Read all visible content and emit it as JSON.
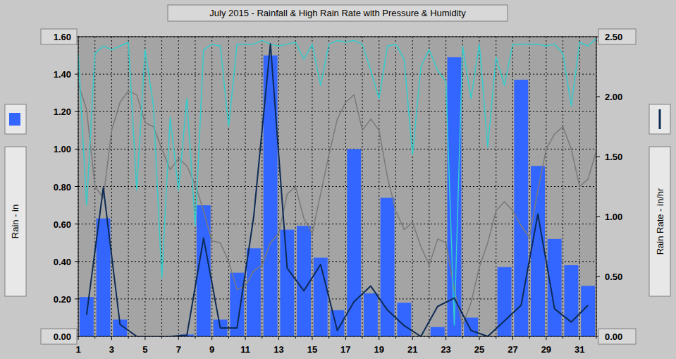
{
  "chart_data": {
    "type": "bar",
    "title": "July 2015 - Rainfall & High Rain Rate with Pressure & Humidity",
    "y_label": "Rain - in",
    "y2_label": "Rain Rate - in/hr",
    "xlim": [
      1,
      32
    ],
    "xticks": [
      1,
      3,
      5,
      7,
      9,
      11,
      13,
      15,
      17,
      19,
      21,
      23,
      25,
      27,
      29,
      31
    ],
    "xticks_minor": [
      2,
      4,
      6,
      8,
      10,
      12,
      14,
      16,
      18,
      20,
      22,
      24,
      26,
      28,
      30,
      32
    ],
    "ylim": [
      0,
      1.6
    ],
    "yticks": [
      {
        "value": 0,
        "label": "0.00"
      },
      {
        "value": 0.2,
        "label": "0.20"
      },
      {
        "value": 0.4,
        "label": "0.40"
      },
      {
        "value": 0.6,
        "label": "0.60"
      },
      {
        "value": 0.8,
        "label": "0.80"
      },
      {
        "value": 1.0,
        "label": "1.00"
      },
      {
        "value": 1.2,
        "label": "1.20"
      },
      {
        "value": 1.4,
        "label": "1.40"
      },
      {
        "value": 1.6,
        "label": "1.60"
      }
    ],
    "y2lim": [
      0,
      2.5
    ],
    "y2ticks": [
      {
        "value": 0,
        "label": "0.00"
      },
      {
        "value": 0.5,
        "label": "0.50"
      },
      {
        "value": 1.0,
        "label": "1.00"
      },
      {
        "value": 1.5,
        "label": "1.50"
      },
      {
        "value": 2.0,
        "label": "2.00"
      },
      {
        "value": 2.5,
        "label": "2.50"
      }
    ],
    "grid": true,
    "series": [
      {
        "type": "bar",
        "color": "#3366ff",
        "x": [
          1.5,
          2.5,
          3.5,
          4.5,
          5.5,
          6.5,
          7.5,
          8.5,
          9.5,
          10.5,
          11.5,
          12.5,
          13.5,
          14.5,
          15.5,
          16.5,
          17.5,
          18.5,
          19.5,
          20.5,
          21.5,
          22.5,
          23.5,
          24.5,
          25.5,
          26.5,
          27.5,
          28.5,
          29.5,
          30.5,
          31.5
        ],
        "values": [
          0.21,
          0.63,
          0.09,
          0,
          0,
          0,
          0.01,
          0.7,
          0.09,
          0.34,
          0.47,
          1.5,
          0.57,
          0.59,
          0.42,
          0.14,
          1.0,
          0.23,
          0.74,
          0.18,
          0,
          0.05,
          1.49,
          0.1,
          0,
          0.37,
          1.37,
          0.91,
          0.52,
          0.38,
          0.27
        ]
      },
      {
        "type": "line",
        "axis": "y2",
        "color": "#0d2b55",
        "x": [
          1.5,
          2.5,
          3.5,
          4.5,
          5.5,
          6.5,
          7.5,
          8.5,
          9.5,
          10.5,
          11.5,
          12.5,
          13.5,
          14.5,
          15.5,
          16.5,
          17.5,
          18.5,
          19.5,
          20.5,
          21.5,
          22.5,
          23.5,
          24.5,
          25.5,
          26.5,
          27.5,
          28.5,
          29.5,
          30.5,
          31.5
        ],
        "values": [
          0.18,
          1.24,
          0.1,
          0,
          0,
          0,
          0.01,
          0.82,
          0.07,
          0.07,
          1.0,
          2.44,
          0.57,
          0.38,
          0.6,
          0.05,
          0.29,
          0.42,
          0.22,
          0.09,
          0,
          0.25,
          0.32,
          0.05,
          0,
          0.13,
          0.26,
          1.02,
          0.23,
          0.12,
          0.26
        ]
      },
      {
        "type": "line",
        "color": "#7a7a7a",
        "x": [
          1,
          1.5,
          2,
          2.5,
          3,
          3.5,
          4,
          4.5,
          5,
          5.5,
          6,
          6.5,
          7,
          7.5,
          8,
          8.5,
          9,
          9.5,
          10,
          10.5,
          11,
          11.5,
          12,
          12.5,
          13,
          13.5,
          14,
          14.5,
          15,
          15.5,
          16,
          16.5,
          17,
          17.5,
          18,
          18.5,
          19,
          19.5,
          20,
          20.5,
          21,
          21.5,
          22,
          22.5,
          23,
          23.5,
          24,
          24.5,
          25,
          25.5,
          26,
          26.5,
          27,
          27.5,
          28,
          28.5,
          29,
          29.5,
          30,
          30.5,
          31,
          31.5,
          32
        ],
        "values": [
          1.35,
          1.21,
          0.8,
          0.74,
          1.1,
          1.25,
          1.31,
          1.29,
          1.14,
          1.12,
          1.0,
          0.89,
          0.95,
          0.91,
          0.81,
          0.67,
          0.51,
          0.5,
          0.4,
          0.25,
          0.27,
          0.35,
          0.38,
          0.5,
          0.55,
          0.76,
          0.8,
          0.63,
          0.55,
          0.76,
          0.97,
          1.16,
          1.25,
          1.29,
          1.1,
          1.16,
          1.1,
          0.85,
          0.67,
          0.57,
          0.61,
          0.48,
          0.38,
          0.52,
          0.5,
          0.25,
          0.06,
          0.18,
          0.37,
          0.5,
          0.67,
          0.72,
          0.67,
          0.59,
          0.53,
          0.78,
          1.0,
          1.08,
          1.12,
          1.0,
          0.8,
          0.84,
          0.99
        ]
      },
      {
        "type": "line",
        "color": "#33cccc",
        "x": [
          1,
          1.5,
          2,
          2.5,
          3,
          3.5,
          4,
          4.5,
          5,
          5.5,
          6,
          6.5,
          7,
          7.5,
          8,
          8.5,
          9,
          9.5,
          10,
          10.5,
          11,
          11.5,
          12,
          12.5,
          13,
          13.5,
          14,
          14.5,
          15,
          15.5,
          16,
          16.5,
          17,
          17.5,
          18,
          18.5,
          19,
          19.5,
          20,
          20.5,
          21,
          21.5,
          22,
          22.5,
          23,
          23.5,
          24,
          24.5,
          25,
          25.5,
          26,
          26.5,
          27,
          27.5,
          28,
          28.5,
          29,
          29.5,
          30,
          30.5,
          31,
          31.5,
          32
        ],
        "values": [
          1.51,
          0.7,
          1.51,
          1.55,
          1.53,
          1.55,
          1.57,
          0.78,
          1.53,
          1.23,
          0.31,
          1.17,
          0.78,
          1.27,
          0.59,
          1.53,
          1.56,
          1.55,
          1.12,
          1.56,
          1.56,
          1.56,
          1.58,
          1.56,
          1.55,
          1.56,
          1.57,
          1.48,
          1.56,
          1.34,
          1.56,
          1.58,
          1.57,
          1.58,
          1.56,
          1.42,
          1.27,
          1.55,
          1.56,
          1.48,
          0.97,
          1.44,
          1.53,
          1.42,
          1.36,
          0.06,
          1.55,
          1.27,
          1.56,
          1.01,
          1.49,
          1.34,
          1.56,
          1.56,
          1.56,
          1.56,
          1.55,
          1.56,
          1.51,
          1.23,
          1.57,
          1.55,
          1.59
        ]
      }
    ]
  }
}
